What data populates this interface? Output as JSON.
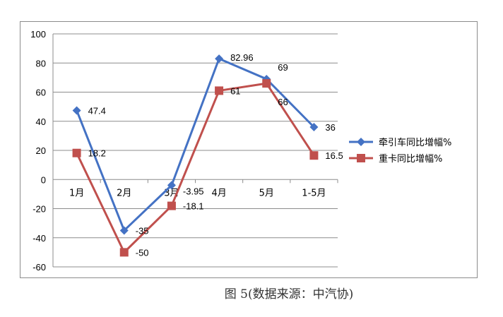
{
  "chart_data": {
    "type": "line",
    "categories": [
      "1月",
      "2月",
      "3月",
      "4月",
      "5月",
      "1-5月"
    ],
    "series": [
      {
        "name": "牵引车同比增幅%",
        "values": [
          47.4,
          -35,
          -3.95,
          82.96,
          69,
          36
        ],
        "labels": [
          "47.4",
          "-35",
          "-3.95",
          "82.96",
          "69",
          "36"
        ],
        "color": "#4472c4",
        "marker": "diamond"
      },
      {
        "name": "重卡同比增幅%",
        "values": [
          18.2,
          -50,
          -18.1,
          61,
          66,
          16.5
        ],
        "labels": [
          "18.2",
          "-50",
          "-18.1",
          "61",
          "66",
          "16.5"
        ],
        "color": "#c0504d",
        "marker": "square"
      }
    ],
    "ylim": [
      -60,
      100
    ],
    "yticks": [
      "100",
      "80",
      "60",
      "40",
      "20",
      "0",
      "-20",
      "-40",
      "-60"
    ],
    "grid": true,
    "legend": "right"
  },
  "caption": "图 5(数据来源：中汽协)"
}
